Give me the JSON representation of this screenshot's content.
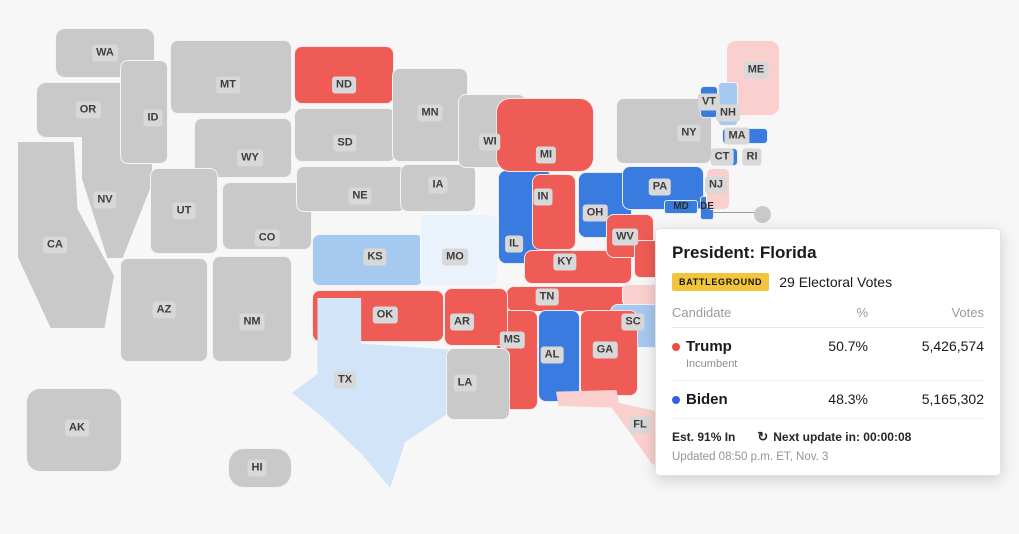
{
  "palette": {
    "rep_solid": "#ef5c55",
    "rep_lean": "#fad0cf",
    "dem_solid": "#3a7be0",
    "dem_lean": "#a6c9f0",
    "dem_lean_light": "#d2e4f8",
    "dem_lean_faint": "#eaf2fc",
    "none": "#c9c9c9",
    "background": "#f7f7f7",
    "chip_bg": "#d8d8d8",
    "battleground_bg": "#f3c53c"
  },
  "map": {
    "states": [
      {
        "id": "WA",
        "label": "WA",
        "result": "none"
      },
      {
        "id": "OR",
        "label": "OR",
        "result": "none"
      },
      {
        "id": "CA",
        "label": "CA",
        "result": "none"
      },
      {
        "id": "NV",
        "label": "NV",
        "result": "none"
      },
      {
        "id": "ID",
        "label": "ID",
        "result": "none"
      },
      {
        "id": "MT",
        "label": "MT",
        "result": "none"
      },
      {
        "id": "WY",
        "label": "WY",
        "result": "none"
      },
      {
        "id": "UT",
        "label": "UT",
        "result": "none"
      },
      {
        "id": "CO",
        "label": "CO",
        "result": "none"
      },
      {
        "id": "AZ",
        "label": "AZ",
        "result": "none"
      },
      {
        "id": "NM",
        "label": "NM",
        "result": "none"
      },
      {
        "id": "ND",
        "label": "ND",
        "result": "rep_solid"
      },
      {
        "id": "SD",
        "label": "SD",
        "result": "none"
      },
      {
        "id": "NE",
        "label": "NE",
        "result": "none"
      },
      {
        "id": "KS",
        "label": "KS",
        "result": "dem_lean"
      },
      {
        "id": "OK",
        "label": "OK",
        "result": "rep_solid"
      },
      {
        "id": "TX",
        "label": "TX",
        "result": "dem_lean_light"
      },
      {
        "id": "MN",
        "label": "MN",
        "result": "none"
      },
      {
        "id": "IA",
        "label": "IA",
        "result": "none"
      },
      {
        "id": "MO",
        "label": "MO",
        "result": "dem_lean_faint"
      },
      {
        "id": "WI",
        "label": "WI",
        "result": "none"
      },
      {
        "id": "IL",
        "label": "IL",
        "result": "dem_solid"
      },
      {
        "id": "MI",
        "label": "MI",
        "result": "rep_solid"
      },
      {
        "id": "IN",
        "label": "IN",
        "result": "rep_solid"
      },
      {
        "id": "OH",
        "label": "OH",
        "result": "dem_solid"
      },
      {
        "id": "KY",
        "label": "KY",
        "result": "rep_solid"
      },
      {
        "id": "TN",
        "label": "TN",
        "result": "rep_solid"
      },
      {
        "id": "WV",
        "label": "WV",
        "result": "rep_solid"
      },
      {
        "id": "VA",
        "label": "",
        "result": "rep_solid"
      },
      {
        "id": "PA",
        "label": "PA",
        "result": "dem_solid"
      },
      {
        "id": "NY",
        "label": "NY",
        "result": "none"
      },
      {
        "id": "MD",
        "label": "MD",
        "result": "dem_solid"
      },
      {
        "id": "DE",
        "label": "DE",
        "result": "dem_solid"
      },
      {
        "id": "NC",
        "label": "",
        "result": "rep_lean"
      },
      {
        "id": "SC",
        "label": "SC",
        "result": "dem_lean"
      },
      {
        "id": "GA",
        "label": "GA",
        "result": "rep_solid"
      },
      {
        "id": "AL",
        "label": "AL",
        "result": "dem_solid"
      },
      {
        "id": "MS",
        "label": "MS",
        "result": "rep_solid"
      },
      {
        "id": "AR",
        "label": "AR",
        "result": "rep_solid"
      },
      {
        "id": "LA",
        "label": "LA",
        "result": "none"
      },
      {
        "id": "FL",
        "label": "FL",
        "result": "rep_lean"
      },
      {
        "id": "AK",
        "label": "AK",
        "result": "none"
      },
      {
        "id": "HI",
        "label": "HI",
        "result": "none"
      },
      {
        "id": "ME",
        "label": "ME",
        "result": "rep_lean"
      },
      {
        "id": "VT",
        "label": "VT",
        "result": "dem_solid"
      },
      {
        "id": "NH",
        "label": "NH",
        "result": "dem_lean"
      },
      {
        "id": "MA",
        "label": "MA",
        "result": "dem_solid"
      },
      {
        "id": "CT",
        "label": "CT",
        "result": "dem_solid"
      },
      {
        "id": "RI",
        "label": "RI",
        "result": "dem_solid"
      },
      {
        "id": "NJ",
        "label": "NJ",
        "result": "rep_lean"
      }
    ]
  },
  "popup": {
    "title": "President: Florida",
    "badge": "BATTLEGROUND",
    "electoral_votes": "29 Electoral Votes",
    "table": {
      "headers": [
        "Candidate",
        "%",
        "Votes"
      ],
      "rows": [
        {
          "name": "Trump",
          "sub": "Incumbent",
          "party_color": "#ee4b3e",
          "pct": "50.7%",
          "votes": "5,426,574"
        },
        {
          "name": "Biden",
          "sub": "",
          "party_color": "#3460d9",
          "pct": "48.3%",
          "votes": "5,165,302"
        }
      ]
    },
    "footer": {
      "est": "Est. 91% In",
      "refresh_icon": "↻",
      "next_update": "Next update in: 00:00:08",
      "updated": "Updated 08:50 p.m. ET, Nov. 3"
    }
  }
}
